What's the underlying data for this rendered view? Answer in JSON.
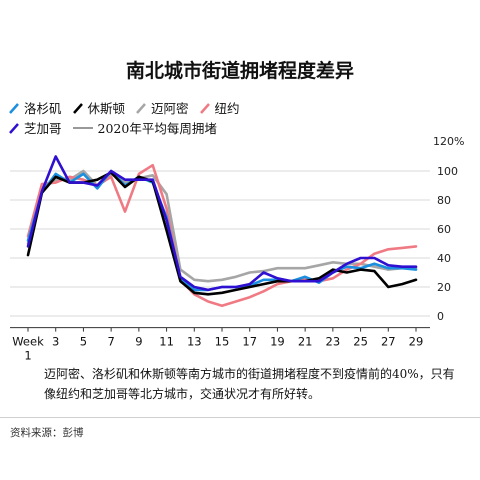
{
  "title": "南北城市街道拥堵程度差异",
  "legend": [
    {
      "label": "洛杉矶",
      "color": "#1a8fe0"
    },
    {
      "label": "休斯顿",
      "color": "#000000"
    },
    {
      "label": "迈阿密",
      "color": "#a6a6a6"
    },
    {
      "label": "纽约",
      "color": "#f07a84"
    },
    {
      "label": "芝加哥",
      "color": "#2f0fd0"
    },
    {
      "label": "2020年平均每周拥堵",
      "color": "#333333"
    }
  ],
  "caption": "迈阿密、洛杉矶和休斯顿等南方城市的街道拥堵程度不到疫情前的40%，只有像纽约和芝加哥等北方城市，交通状况才有所好转。",
  "source": "资料来源：彭博",
  "chart_data": {
    "type": "line",
    "title": "南北城市街道拥堵程度差异",
    "xlabel": "",
    "ylabel": "",
    "x": [
      1,
      2,
      3,
      4,
      5,
      6,
      7,
      8,
      9,
      10,
      11,
      12,
      13,
      14,
      15,
      16,
      17,
      18,
      19,
      20,
      21,
      22,
      23,
      24,
      25,
      26,
      27,
      28,
      29
    ],
    "x_ticks": [
      1,
      3,
      5,
      7,
      9,
      11,
      13,
      15,
      17,
      19,
      21,
      23,
      25,
      27,
      29
    ],
    "x_tick_labels": [
      "Week",
      "3",
      "5",
      "7",
      "9",
      "11",
      "13",
      "15",
      "17",
      "19",
      "21",
      "23",
      "25",
      "27",
      "29"
    ],
    "x_first_sublabel": "1",
    "y_ticks": [
      0,
      20,
      40,
      60,
      80,
      100
    ],
    "y_tick_labels": [
      "0",
      "20",
      "40",
      "60",
      "80",
      "100"
    ],
    "y_top_label": "120%",
    "ylim": [
      -8,
      122
    ],
    "xlim": [
      1,
      29
    ],
    "grid": true,
    "series": [
      {
        "name": "迈阿密",
        "color": "#a6a6a6",
        "values": [
          50,
          88,
          94,
          94,
          100,
          90,
          98,
          92,
          95,
          97,
          84,
          32,
          25,
          24,
          25,
          27,
          30,
          31,
          33,
          33,
          33,
          35,
          37,
          36,
          36,
          34,
          32,
          33,
          33
        ]
      },
      {
        "name": "纽约",
        "color": "#f07a84",
        "values": [
          55,
          91,
          92,
          96,
          94,
          90,
          96,
          72,
          98,
          104,
          74,
          25,
          15,
          10,
          7,
          10,
          13,
          17,
          22,
          24,
          26,
          24,
          26,
          32,
          36,
          43,
          46,
          47,
          48
        ]
      },
      {
        "name": "洛杉矶",
        "color": "#1a8fe0",
        "values": [
          52,
          85,
          98,
          92,
          98,
          88,
          100,
          90,
          96,
          92,
          68,
          26,
          18,
          18,
          20,
          20,
          21,
          25,
          25,
          24,
          27,
          23,
          30,
          34,
          33,
          36,
          33,
          33,
          32
        ]
      },
      {
        "name": "休斯顿",
        "color": "#000000",
        "values": [
          42,
          85,
          96,
          92,
          92,
          94,
          99,
          89,
          96,
          93,
          59,
          24,
          16,
          15,
          16,
          18,
          20,
          22,
          24,
          24,
          24,
          26,
          32,
          30,
          32,
          31,
          20,
          22,
          25
        ]
      },
      {
        "name": "芝加哥",
        "color": "#2f0fd0",
        "values": [
          48,
          86,
          110,
          92,
          92,
          90,
          100,
          94,
          94,
          94,
          66,
          27,
          20,
          18,
          20,
          20,
          22,
          30,
          26,
          24,
          24,
          24,
          30,
          36,
          40,
          40,
          35,
          34,
          34
        ]
      }
    ]
  }
}
